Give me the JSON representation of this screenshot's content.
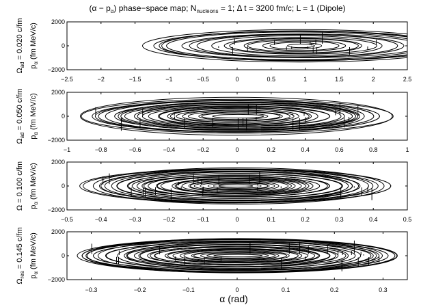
{
  "chart_data": {
    "type": "line",
    "title": {
      "prefix": "(α − p",
      "prefix_sub": "α",
      "mid": ") phase−space map; N",
      "mid_sub": "nucleons",
      "suffix": " = 1; Δ t = 3200 fm/c; L = 1 (Dipole)"
    },
    "xlabel": "α (rad)",
    "grid": false,
    "legend": "none",
    "line_color": "#000000",
    "panels": [
      {
        "omega_main": "Ω",
        "omega_sub": "ad",
        "omega_value": " = 0.020 c/fm",
        "ylabel_main": "p",
        "ylabel_sub": "α",
        "ylabel_unit": " (fm MeV/c)",
        "xlim": [
          -2.5,
          2.5
        ],
        "ylim": [
          -2000,
          2000
        ],
        "xticks": [
          "−2.5",
          "−2",
          "−1.5",
          "−1",
          "−0.5",
          "0",
          "0.5",
          "1",
          "1.5",
          "2",
          "2.5"
        ],
        "yticks": [
          "2000",
          "0",
          "−2000"
        ],
        "orbit_center": [
          0.9,
          0
        ],
        "alpha_amplitude_range": [
          0.2,
          2.35
        ],
        "p_amplitude_range": [
          150,
          1350
        ],
        "orbit_count": 16
      },
      {
        "omega_main": "Ω",
        "omega_sub": "ad",
        "omega_value": " = 0.050 c/fm",
        "ylabel_main": "p",
        "ylabel_sub": "α",
        "ylabel_unit": " (fm MeV/c)",
        "xlim": [
          -1,
          1
        ],
        "ylim": [
          -2000,
          2000
        ],
        "xticks": [
          "−1",
          "−0.8",
          "−0.6",
          "−0.4",
          "−0.2",
          "0",
          "0.2",
          "0.4",
          "0.6",
          "0.8",
          "1"
        ],
        "yticks": [
          "2000",
          "0",
          "−2000"
        ],
        "orbit_center": [
          0,
          0
        ],
        "alpha_amplitude_range": [
          0.15,
          0.93
        ],
        "p_amplitude_range": [
          150,
          1500
        ],
        "orbit_count": 24
      },
      {
        "omega_main": "Ω",
        "omega_sub": "",
        "omega_value": " = 0.100 c/fm",
        "ylabel_main": "p",
        "ylabel_sub": "α",
        "ylabel_unit": " (fm MeV/c)",
        "xlim": [
          -0.5,
          0.5
        ],
        "ylim": [
          -2000,
          2000
        ],
        "xticks": [
          "−0.5",
          "−0.4",
          "−0.3",
          "−0.2",
          "−0.1",
          "0",
          "0.1",
          "0.2",
          "0.3",
          "0.4",
          "0.5"
        ],
        "yticks": [
          "2000",
          "0",
          "−2000"
        ],
        "orbit_center": [
          0,
          0
        ],
        "alpha_amplitude_range": [
          0.05,
          0.45
        ],
        "p_amplitude_range": [
          100,
          1500
        ],
        "orbit_count": 30
      },
      {
        "omega_main": "Ω",
        "omega_sub": "res",
        "omega_value": " = 0.145 c/fm",
        "ylabel_main": "p",
        "ylabel_sub": "α",
        "ylabel_unit": " (fm MeV/c)",
        "xlim": [
          -0.35,
          0.35
        ],
        "ylim": [
          -2000,
          2000
        ],
        "xticks": [
          "−0.3",
          "−0.2",
          "−0.1",
          "0",
          "0.1",
          "0.2",
          "0.3"
        ],
        "xtick_values": [
          -0.3,
          -0.2,
          -0.1,
          0,
          0.1,
          0.2,
          0.3
        ],
        "yticks": [
          "2000",
          "0",
          "−2000"
        ],
        "orbit_center": [
          0,
          0
        ],
        "alpha_amplitude_range": [
          0.05,
          0.335
        ],
        "p_amplitude_range": [
          100,
          1500
        ],
        "orbit_count": 30
      }
    ]
  }
}
